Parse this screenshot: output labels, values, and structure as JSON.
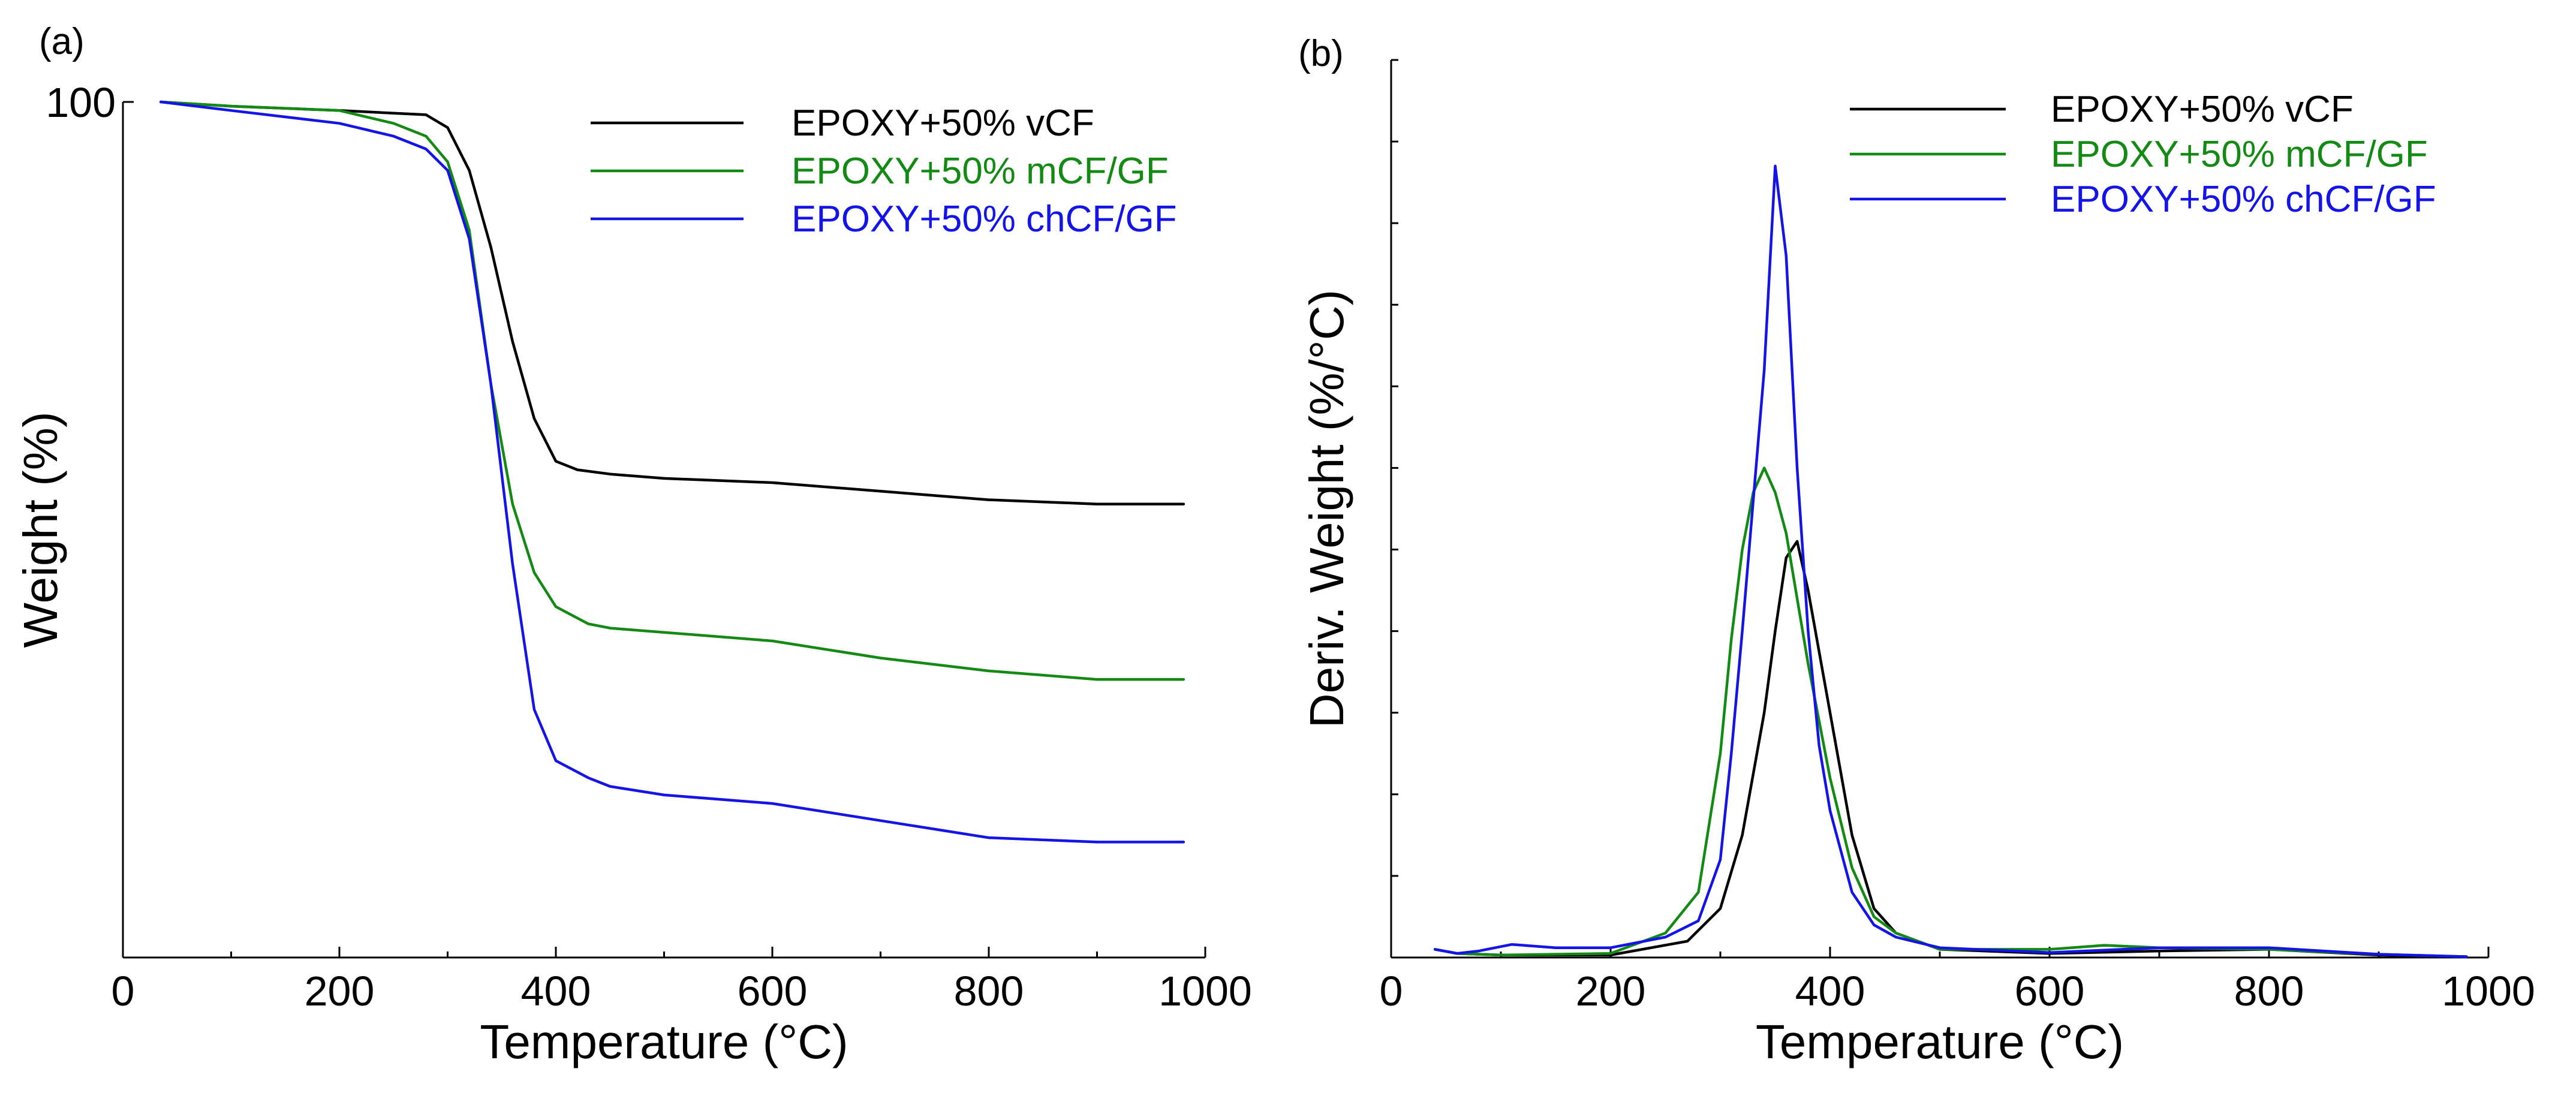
{
  "chart_data": [
    {
      "panel": "(a)",
      "type": "line",
      "xlabel": "Temperature (°C)",
      "ylabel": "Weight (%)",
      "xlim": [
        0,
        1000
      ],
      "ylim": [
        0,
        100
      ],
      "x_ticks": [
        0,
        200,
        400,
        600,
        800,
        1000
      ],
      "y_tick_labels": [
        {
          "value": 100,
          "label": "100"
        }
      ],
      "minor_x_step": 100,
      "grid": false,
      "legend_position": "top-right",
      "series": [
        {
          "name": "EPOXY+50% vCF",
          "color": "#000000",
          "x": [
            35,
            100,
            200,
            280,
            300,
            320,
            340,
            360,
            380,
            400,
            420,
            450,
            500,
            600,
            700,
            800,
            900,
            980
          ],
          "y": [
            100,
            99.5,
            99,
            98.5,
            97,
            92,
            83,
            72,
            63,
            58,
            57,
            56.5,
            56,
            55.5,
            54.5,
            53.5,
            53,
            53
          ]
        },
        {
          "name": "EPOXY+50% mCF/GF",
          "color": "#138a13",
          "x": [
            35,
            100,
            200,
            250,
            280,
            300,
            320,
            340,
            360,
            380,
            400,
            430,
            450,
            500,
            600,
            700,
            800,
            900,
            980
          ],
          "y": [
            100,
            99.5,
            99,
            97.5,
            96,
            93,
            85,
            67,
            53,
            45,
            41,
            39,
            38.5,
            38,
            37,
            35,
            33.5,
            32.5,
            32.5
          ]
        },
        {
          "name": "EPOXY+50% chCF/GF",
          "color": "#1414e6",
          "x": [
            35,
            100,
            200,
            250,
            280,
            300,
            320,
            340,
            360,
            380,
            400,
            430,
            450,
            500,
            600,
            700,
            800,
            900,
            980
          ],
          "y": [
            100,
            99,
            97.5,
            96,
            94.5,
            92,
            84,
            67,
            46,
            29,
            23,
            21,
            20,
            19,
            18,
            16,
            14,
            13.5,
            13.5
          ]
        }
      ]
    },
    {
      "panel": "(b)",
      "type": "line",
      "xlabel": "Temperature (°C)",
      "ylabel": "Deriv. Weight (%/°C)",
      "xlim": [
        0,
        1000
      ],
      "ylim": [
        0,
        1.1
      ],
      "x_ticks": [
        0,
        200,
        400,
        600,
        800,
        1000
      ],
      "y_tick_labels": [],
      "minor_x_step": 100,
      "y_minor_step": 0.1,
      "grid": false,
      "legend_position": "top-right",
      "series": [
        {
          "name": "EPOXY+50% vCF",
          "color": "#000000",
          "x": [
            40,
            60,
            100,
            200,
            270,
            300,
            320,
            340,
            350,
            360,
            370,
            380,
            400,
            420,
            440,
            460,
            500,
            600,
            700,
            800,
            900,
            980
          ],
          "y": [
            0.01,
            0.005,
            0.003,
            0.003,
            0.02,
            0.06,
            0.15,
            0.3,
            0.4,
            0.49,
            0.51,
            0.45,
            0.3,
            0.15,
            0.06,
            0.03,
            0.01,
            0.005,
            0.008,
            0.01,
            0.003,
            0.001
          ]
        },
        {
          "name": "EPOXY+50% mCF/GF",
          "color": "#138a13",
          "x": [
            40,
            60,
            100,
            200,
            250,
            280,
            300,
            310,
            320,
            330,
            340,
            350,
            360,
            370,
            380,
            400,
            420,
            440,
            460,
            500,
            600,
            650,
            700,
            800,
            900,
            980
          ],
          "y": [
            0.01,
            0.005,
            0.003,
            0.005,
            0.03,
            0.08,
            0.25,
            0.39,
            0.5,
            0.57,
            0.6,
            0.57,
            0.52,
            0.44,
            0.36,
            0.22,
            0.11,
            0.05,
            0.03,
            0.01,
            0.01,
            0.015,
            0.012,
            0.01,
            0.004,
            0.001
          ]
        },
        {
          "name": "EPOXY+50% chCF/GF",
          "color": "#1414e6",
          "x": [
            40,
            60,
            80,
            110,
            150,
            200,
            250,
            280,
            300,
            310,
            320,
            330,
            340,
            350,
            360,
            370,
            380,
            390,
            400,
            420,
            440,
            460,
            500,
            600,
            700,
            800,
            900,
            980
          ],
          "y": [
            0.01,
            0.005,
            0.008,
            0.016,
            0.012,
            0.012,
            0.025,
            0.045,
            0.12,
            0.25,
            0.4,
            0.56,
            0.72,
            0.97,
            0.86,
            0.6,
            0.4,
            0.26,
            0.18,
            0.08,
            0.04,
            0.025,
            0.012,
            0.006,
            0.012,
            0.012,
            0.004,
            0.001
          ]
        }
      ]
    }
  ]
}
